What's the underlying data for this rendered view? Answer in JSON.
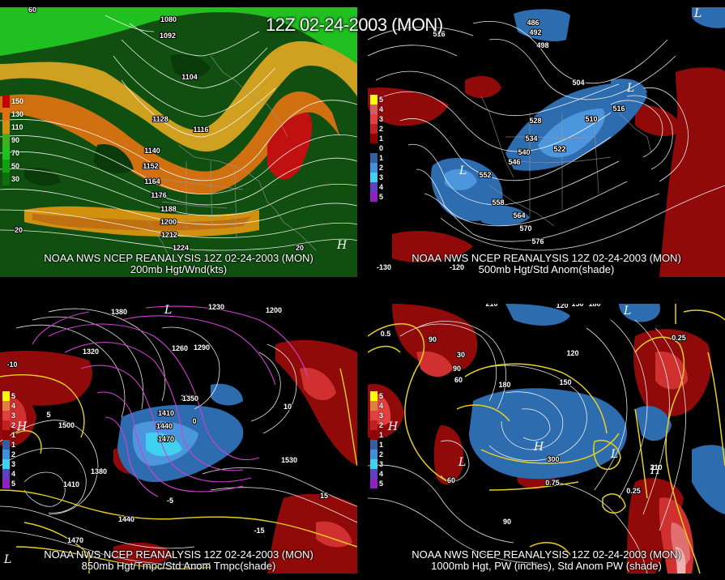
{
  "title": "12Z 02-24-2003 (MON)",
  "panels": [
    {
      "caption_line1": "NOAA NWS NCEP REANALYSIS 12Z 02-24-2003 (MON)",
      "caption_line2": "200mb Hgt/Wnd(kts)",
      "legend": [
        "150",
        "130",
        "110",
        "90",
        "70",
        "50",
        "30"
      ],
      "legend_colors": [
        "#c00000",
        "#e07010",
        "#d09010",
        "#40b020",
        "#20c020",
        "#10a010",
        "#107010"
      ],
      "contour_labels": [
        "1080",
        "1092",
        "1104",
        "1116",
        "1128",
        "1140",
        "1152",
        "1164",
        "1176",
        "1188",
        "1200",
        "1212",
        "1224",
        "60",
        "20",
        "20"
      ]
    },
    {
      "caption_line1": "NOAA NWS NCEP REANALYSIS 12Z 02-24-2003 (MON)",
      "caption_line2": "500mb Hgt/Std Anom(shade)",
      "legend": [
        "5",
        "4",
        "3",
        "2",
        "1",
        "0",
        "1",
        "2",
        "3",
        "4",
        "5"
      ],
      "legend_colors": [
        "#ffff00",
        "#d06060",
        "#e04040",
        "#c02020",
        "#900000",
        "#000000",
        "#4080c0",
        "#3060a0",
        "#4090e0",
        "#6040c0",
        "#9020c0"
      ],
      "contour_labels": [
        "486",
        "492",
        "498",
        "504",
        "510",
        "516",
        "522",
        "528",
        "534",
        "540",
        "546",
        "552",
        "558",
        "564",
        "570",
        "576",
        "516",
        "-130",
        "-120"
      ]
    },
    {
      "caption_line1": "NOAA NWS NCEP REANALYSIS 12Z 02-24-2003 (MON)",
      "caption_line2": "850mb Hgt/Tmpc/Std Anom Tmpc(shade)",
      "legend": [
        "5",
        "4",
        "3",
        "2",
        "1",
        "1",
        "2",
        "3",
        "4",
        "5"
      ],
      "legend_colors": [
        "#ffff00",
        "#e08040",
        "#e04040",
        "#c02020",
        "#900000",
        "#3060a0",
        "#4090e0",
        "#40d0f0",
        "#6040c0",
        "#9020c0"
      ],
      "contour_labels": [
        "1380",
        "1320",
        "1290",
        "1260",
        "1230",
        "1200",
        "1350",
        "1410",
        "1440",
        "1470",
        "1500",
        "1530",
        "1380",
        "1410",
        "1440",
        "1470",
        "-15",
        "-10",
        "-5",
        "0",
        "5",
        "10",
        "15",
        "1350"
      ]
    },
    {
      "caption_line1": "NOAA NWS NCEP REANALYSIS 12Z 02-24-2003 (MON)",
      "caption_line2": "1000mb Hgt, PW (inches), Std Anom PW (shade)",
      "legend": [
        "5",
        "4",
        "3",
        "2",
        "1",
        "1",
        "2",
        "3",
        "4",
        "5"
      ],
      "legend_colors": [
        "#ffff00",
        "#e08040",
        "#e04040",
        "#c02020",
        "#900000",
        "#3060a0",
        "#4090e0",
        "#40d0f0",
        "#6040c0",
        "#9020c0"
      ],
      "contour_labels": [
        "210",
        "150",
        "120",
        "90",
        "60",
        "30",
        "180",
        "300",
        "0.25",
        "0.5",
        "0.75",
        "180",
        "150",
        "120",
        "90",
        "60",
        "0.25",
        "210",
        "90"
      ]
    }
  ]
}
